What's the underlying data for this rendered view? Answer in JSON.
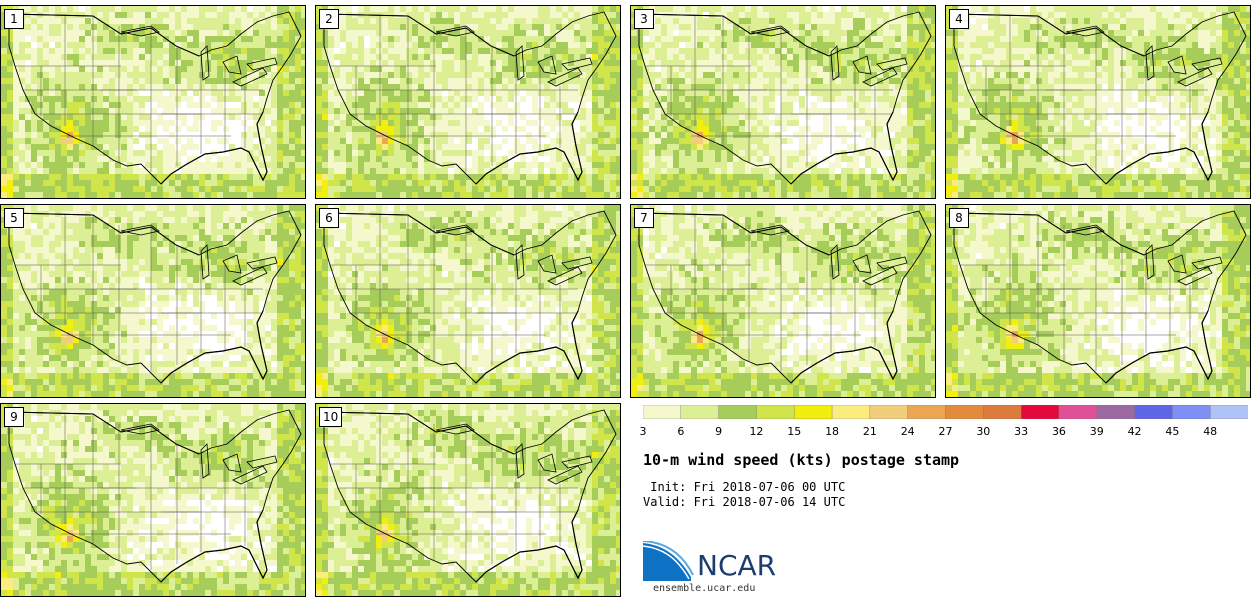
{
  "chart_data": {
    "type": "heatmap",
    "title": "10-m wind speed (kts) postage stamp",
    "variable": "10-m wind speed",
    "units": "kts",
    "members": [
      "1",
      "2",
      "3",
      "4",
      "5",
      "6",
      "7",
      "8",
      "9",
      "10"
    ],
    "colorbar": {
      "tick_labels": [
        "3",
        "6",
        "9",
        "12",
        "15",
        "18",
        "21",
        "24",
        "27",
        "30",
        "33",
        "36",
        "39",
        "42",
        "45",
        "48"
      ],
      "levels": [
        3,
        6,
        9,
        12,
        15,
        18,
        21,
        24,
        27,
        30,
        33,
        36,
        39,
        42,
        45,
        48,
        51
      ],
      "colors": [
        "#f4f8cc",
        "#dcef94",
        "#a6cc5a",
        "#cfe54a",
        "#f2ee0e",
        "#faec7e",
        "#f1cd7c",
        "#eaa653",
        "#e38b3d",
        "#dc7b3d",
        "#e4093c",
        "#e05096",
        "#9d69a3",
        "#5e65e6",
        "#7e8ff5",
        "#afc3f8"
      ]
    }
  },
  "header": {
    "init_text": " Init: Fri 2018-07-06 00 UTC",
    "valid_text": "Valid: Fri 2018-07-06 14 UTC"
  },
  "logo": {
    "name": "NCAR",
    "url": "ensemble.ucar.edu",
    "color": "#1a3e6e"
  }
}
